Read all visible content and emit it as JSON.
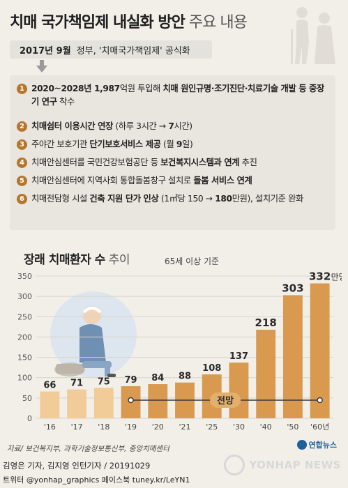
{
  "header": {
    "title_bold": "치매 국가책임제 내실화 방안",
    "title_light": " 주요 내용"
  },
  "announcement": {
    "date": "2017년 9월",
    "text": "정부, '치매국가책임제' 공식화"
  },
  "items": [
    {
      "num": "1",
      "parts": [
        {
          "t": "2020~2028년 1,987",
          "b": true
        },
        {
          "t": "억원 투입해 ",
          "b": false
        },
        {
          "t": "치매 원인규명·조기진단·치료기술 개발 등 중장기 연구",
          "b": true
        },
        {
          "t": " 착수",
          "b": false
        }
      ]
    },
    {
      "num": "2",
      "parts": [
        {
          "t": "치매쉼터 이용시간 연장",
          "b": true
        },
        {
          "t": " (하루 3시간 → ",
          "b": false
        },
        {
          "t": "7",
          "b": true
        },
        {
          "t": "시간)",
          "b": false
        }
      ]
    },
    {
      "num": "3",
      "parts": [
        {
          "t": "주야간 보호기관 ",
          "b": false
        },
        {
          "t": "단기보호서비스 제공",
          "b": true
        },
        {
          "t": " (월 ",
          "b": false
        },
        {
          "t": "9",
          "b": true
        },
        {
          "t": "일)",
          "b": false
        }
      ]
    },
    {
      "num": "4",
      "parts": [
        {
          "t": "치매안심센터를 국민건강보험공단 등 ",
          "b": false
        },
        {
          "t": "보건복지시스템과 연계",
          "b": true
        },
        {
          "t": " 추진",
          "b": false
        }
      ]
    },
    {
      "num": "5",
      "parts": [
        {
          "t": "치매안심센터에 지역사회 통합돌봄창구 설치로 ",
          "b": false
        },
        {
          "t": "돌봄 서비스 연계",
          "b": true
        }
      ]
    },
    {
      "num": "6",
      "parts": [
        {
          "t": "치매전담형 시설 ",
          "b": false
        },
        {
          "t": "건축 지원 단가 인상",
          "b": true
        },
        {
          "t": " (1㎡당 150 → ",
          "b": false
        },
        {
          "t": "180",
          "b": true
        },
        {
          "t": "만원), 설치기준 완화",
          "b": false
        }
      ]
    }
  ],
  "chart_title_bold": "장래 치매환자 수",
  "chart_title_light": " 추이",
  "chart_note": "65세 이상 기준",
  "chart_data": {
    "type": "bar",
    "unit": "만명",
    "categories": [
      "'16",
      "'17",
      "'18",
      "'19",
      "'20",
      "'21",
      "'25",
      "'30",
      "'40",
      "'50",
      "'60년"
    ],
    "values": [
      66,
      71,
      75,
      79,
      84,
      88,
      108,
      137,
      218,
      303,
      332
    ],
    "value_labels": [
      "66",
      "71",
      "75",
      "79",
      "84",
      "88",
      "108",
      "137",
      "218",
      "303",
      "332"
    ],
    "yticks": [
      0,
      50,
      100,
      150,
      200,
      250,
      300,
      350
    ],
    "ylim": [
      0,
      350
    ],
    "forecast_label": "전망",
    "forecast_start_index": 3,
    "colors": {
      "actual": "#f1cc99",
      "forecast": "#d99a4f",
      "grid": "#d8d3cc",
      "forecast_line": "#3a3a3a"
    }
  },
  "source": "자료/ 보건복지부, 과학기술정보통신부, 중앙치매센터",
  "logo_small": "연합뉴스",
  "credits": {
    "line1": "김영은 기자, 김지영 인턴기자 / 20191029",
    "line2": "트위터 @yonhap_graphics  페이스북 tuney.kr/LeYN1"
  },
  "watermark": "YONHAP NEWS"
}
